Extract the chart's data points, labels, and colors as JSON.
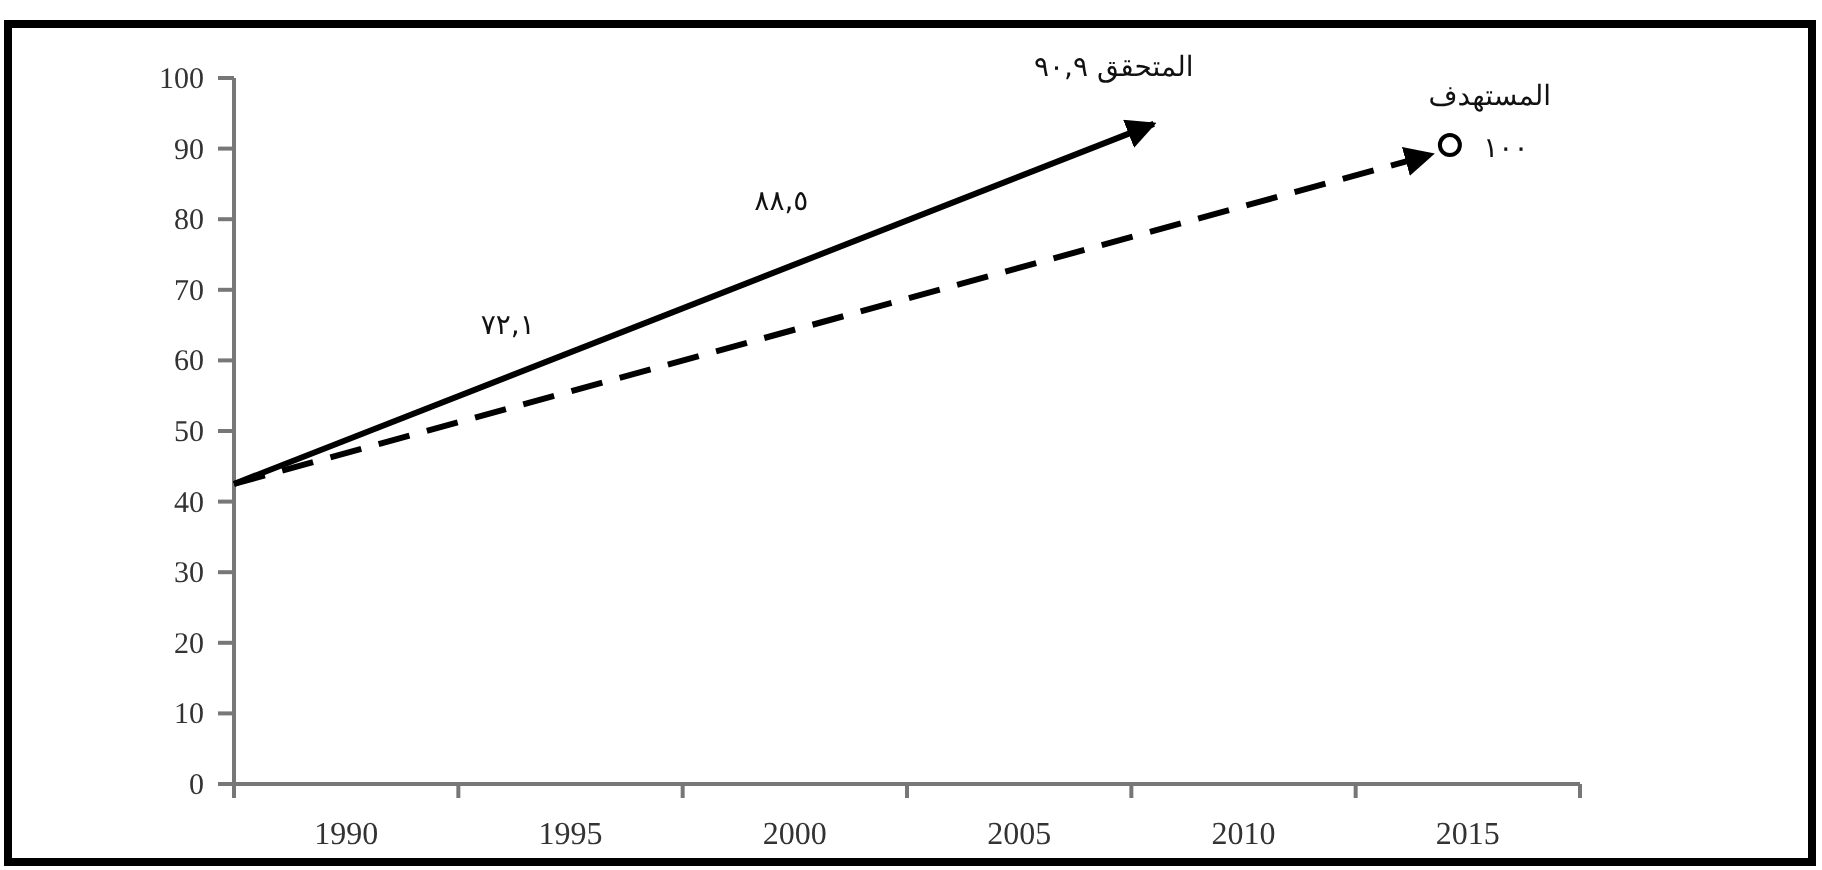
{
  "chart_data": {
    "type": "line",
    "xlim": [
      1987.5,
      2017.5
    ],
    "xticks": [
      {
        "value": 1987.5,
        "label": null
      },
      {
        "value": 1990,
        "label": "1990"
      },
      {
        "value": 1992.5,
        "label": null
      },
      {
        "value": 1995,
        "label": "1995"
      },
      {
        "value": 1997.5,
        "label": null
      },
      {
        "value": 2000,
        "label": "2000"
      },
      {
        "value": 2002.5,
        "label": null
      },
      {
        "value": 2005,
        "label": "2005"
      },
      {
        "value": 2007.5,
        "label": null
      },
      {
        "value": 2010,
        "label": "2010"
      },
      {
        "value": 2012.5,
        "label": null
      },
      {
        "value": 2015,
        "label": "2015"
      },
      {
        "value": 2017.5,
        "label": null
      }
    ],
    "ylim": [
      0,
      100
    ],
    "yticks": [
      0,
      10,
      20,
      30,
      40,
      50,
      60,
      70,
      80,
      90,
      100
    ],
    "grid": false,
    "series": [
      {
        "color": "#000000",
        "line_style": "solid",
        "x": [
          1987.5,
          2008.0
        ],
        "values": [
          42.5,
          93.5
        ]
      },
      {
        "color": "#000000",
        "line_style": "dashed",
        "x": [
          1987.5,
          2014.2
        ],
        "values": [
          42.5,
          89.2
        ]
      },
      {
        "type": "scatter",
        "color": "#000000",
        "marker": "circle",
        "x": [
          2014.6
        ],
        "values": [
          90.5
        ]
      }
    ],
    "annotations": [
      {
        "text": "٧٢,١",
        "x": 1993.6,
        "y": 57.5
      },
      {
        "text": "٨٨,٥",
        "x": 1999.7,
        "y": 72.8
      },
      {
        "text": "المتحقق ٩٠,٩",
        "x": 2008.0,
        "y": 93.5
      },
      {
        "text": "المستهدف",
        "x": 2014.6,
        "y": 90.5
      },
      {
        "text": "١٠٠",
        "x": 2014.6,
        "y": 90.5
      }
    ]
  }
}
